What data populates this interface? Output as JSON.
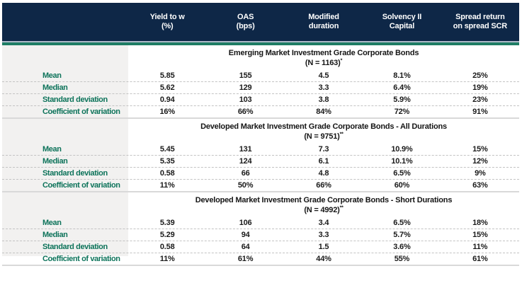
{
  "table": {
    "columns": [
      {
        "line1": "Yield to w",
        "line2": "(%)"
      },
      {
        "line1": "OAS",
        "line2": "(bps)"
      },
      {
        "line1": "Modified",
        "line2": "duration"
      },
      {
        "line1": "Solvency II",
        "line2": "Capital"
      },
      {
        "line1": "Spread  return",
        "line2": "on spread SCR"
      }
    ],
    "sections": [
      {
        "title": "Emerging Market Investment Grade Corporate Bonds",
        "subtitle": "(N = 1163)",
        "sup": "*",
        "rows": [
          {
            "label": "Mean",
            "values": [
              "5.85",
              "155",
              "4.5",
              "8.1%",
              "25%"
            ]
          },
          {
            "label": "Median",
            "values": [
              "5.62",
              "129",
              "3.3",
              "6.4%",
              "19%"
            ]
          },
          {
            "label": "Standard deviation",
            "values": [
              "0.94",
              "103",
              "3.8",
              "5.9%",
              "23%"
            ]
          },
          {
            "label": "Coefficient of variation",
            "values": [
              "16%",
              "66%",
              "84%",
              "72%",
              "91%"
            ]
          }
        ]
      },
      {
        "title": "Developed Market Investment Grade Corporate Bonds - All Durations",
        "subtitle": "(N = 9751)",
        "sup": "**",
        "rows": [
          {
            "label": "Mean",
            "values": [
              "5.45",
              "131",
              "7.3",
              "10.9%",
              "15%"
            ]
          },
          {
            "label": "Median",
            "values": [
              "5.35",
              "124",
              "6.1",
              "10.1%",
              "12%"
            ]
          },
          {
            "label": "Standard deviation",
            "values": [
              "0.58",
              "66",
              "4.8",
              "6.5%",
              "9%"
            ]
          },
          {
            "label": "Coefficient of variation",
            "values": [
              "11%",
              "50%",
              "66%",
              "60%",
              "63%"
            ]
          }
        ]
      },
      {
        "title": "Developed Market Investment Grade Corporate Bonds  -  Short Durations",
        "subtitle": "(N = 4992)",
        "sup": "**",
        "rows": [
          {
            "label": "Mean",
            "values": [
              "5.39",
              "106",
              "3.4",
              "6.5%",
              "18%"
            ]
          },
          {
            "label": "Median",
            "values": [
              "5.29",
              "94",
              "3.3",
              "5.7%",
              "15%"
            ]
          },
          {
            "label": "Standard deviation",
            "values": [
              "0.58",
              "64",
              "1.5",
              "3.6%",
              "11%"
            ]
          },
          {
            "label": "Coefficient of variation",
            "values": [
              "11%",
              "61%",
              "44%",
              "55%",
              "61%"
            ]
          }
        ]
      }
    ]
  },
  "colors": {
    "header_bg": "#0e2747",
    "header_text": "#ffffff",
    "teal_rule": "#1e7d64",
    "blue_rule": "#aeb9c9",
    "label_text": "#0d735a",
    "label_column_bg": "#f2f1f0",
    "value_text": "#1a1a1a",
    "dashed_line": "#c3c3c3",
    "section_line": "#d9d9d9"
  }
}
